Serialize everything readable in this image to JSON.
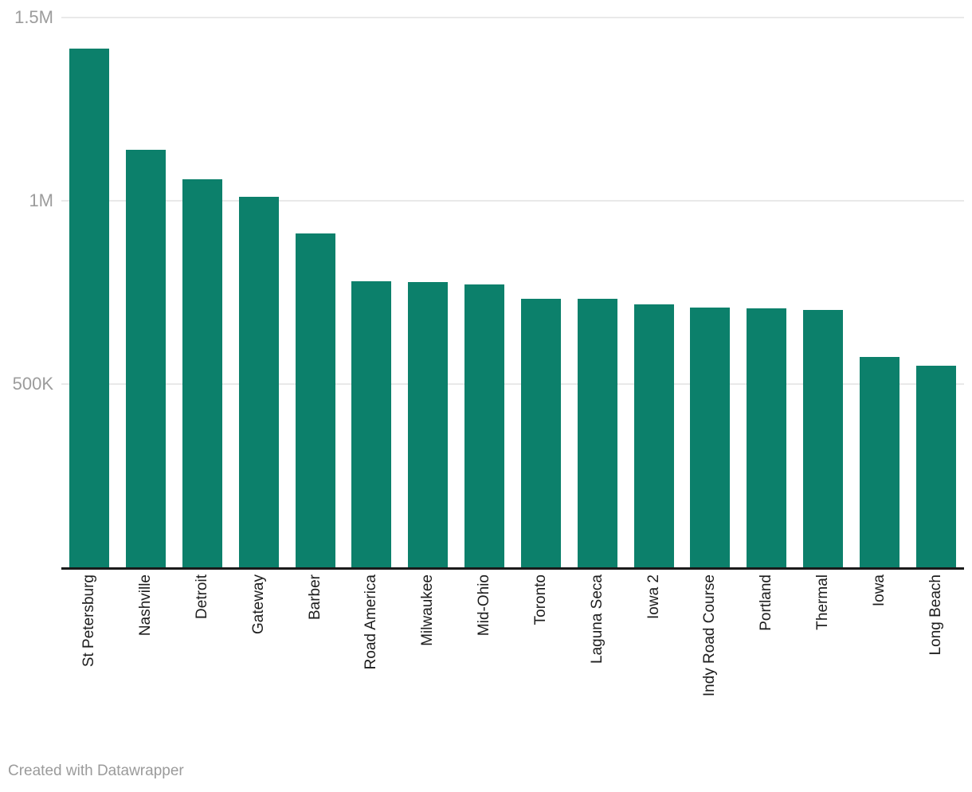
{
  "footer": {
    "attribution": "Created with Datawrapper"
  },
  "colors": {
    "bar": "#0c806b",
    "gridline": "#e9e9e9",
    "axis_line": "#1a1a1a",
    "y_tick_label": "#9c9c9c",
    "x_tick_label": "#1d1d1d",
    "attribution": "#9b9b9b",
    "background": "#ffffff"
  },
  "chart_data": {
    "type": "bar",
    "title": "",
    "xlabel": "",
    "ylabel": "",
    "categories": [
      "St Petersburg",
      "Nashville",
      "Detroit",
      "Gateway",
      "Barber",
      "Road America",
      "Milwaukee",
      "Mid-Ohio",
      "Toronto",
      "Laguna Seca",
      "Iowa 2",
      "Indy Road Course",
      "Portland",
      "Thermal",
      "Iowa",
      "Long Beach"
    ],
    "values": [
      1415000,
      1139000,
      1059000,
      1011000,
      911000,
      780000,
      778000,
      772000,
      733000,
      733000,
      717000,
      708000,
      707000,
      703000,
      574000,
      550000
    ],
    "ylim": [
      0,
      1500000
    ],
    "yticks": [
      {
        "value": 500000,
        "label": "500K"
      },
      {
        "value": 1000000,
        "label": "1M"
      },
      {
        "value": 1500000,
        "label": "1.5M"
      }
    ],
    "grid": true,
    "legend": "none",
    "bar_orientation": "vertical",
    "x_label_rotation_deg": -90
  }
}
